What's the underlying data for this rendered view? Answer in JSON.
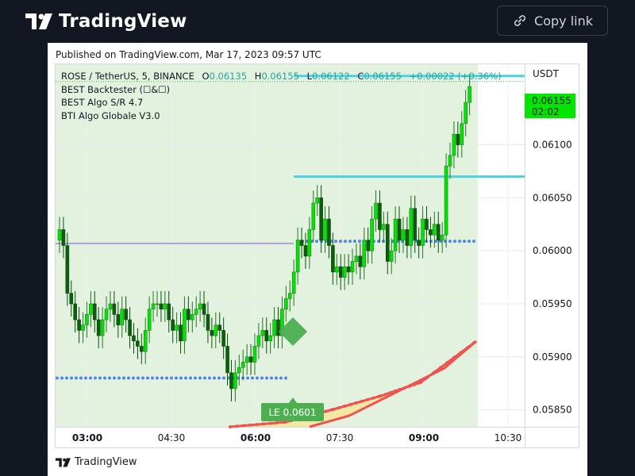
{
  "header": {
    "brand_name": "TradingView",
    "copy_link_label": "Copy link",
    "logo_icon": "tradingview-logo-icon",
    "link_icon": "link-icon"
  },
  "card": {
    "published": "Published on TradingView.com, Mar 17, 2023 09:57 UTC",
    "currency": "USDT",
    "footer_brand": "TradingView"
  },
  "legend": {
    "symbol": "ROSE / TetherUS, 5, BINANCE",
    "open_label": "O",
    "open": "0.06135",
    "high_label": "H",
    "high": "0.06155",
    "low_label": "L",
    "low": "0.06122",
    "close_label": "C",
    "close": "0.06155",
    "change": "+0.00022 (+0.36%)",
    "indicators": [
      "BEST Backtester (☐&☐)",
      "BEST Algo S/R 4.7",
      "BTI Algo Globale V3.0"
    ]
  },
  "colors": {
    "up": "#00e600",
    "down": "#0b5e0b",
    "bg_shade": "#e3f1df",
    "cyan": "#4dd0e1",
    "purple": "#b39ddb",
    "dots": "#4f86e8",
    "trend": "#ef5350",
    "trend_fill": "#f5e79e",
    "signal": "#4caf50"
  },
  "chart_data": {
    "type": "candlestick",
    "symbol": "ROSE / TetherUS",
    "interval": "5",
    "exchange": "BINANCE",
    "y_axis": {
      "ticks": [
        0.0585,
        0.059,
        0.0595,
        0.06,
        0.0605,
        0.061
      ],
      "tick_labels": [
        "0.05850",
        "0.05900",
        "0.05950",
        "0.06000",
        "0.06050",
        "0.06100"
      ],
      "range": [
        0.05834,
        0.06176
      ]
    },
    "x_axis": {
      "tick_labels": [
        "03:00",
        "04:30",
        "06:00",
        "07:30",
        "09:00",
        "10:30"
      ],
      "bold_ticks": [
        "03:00",
        "06:00",
        "09:00"
      ]
    },
    "last_price": "0.06155",
    "countdown": "02:02",
    "signal_label": "LE 0.0601",
    "close_series": [
      0.0602,
      0.06005,
      0.0596,
      0.0595,
      0.05935,
      0.05925,
      0.0593,
      0.0594,
      0.0595,
      0.05935,
      0.0592,
      0.05935,
      0.05945,
      0.0595,
      0.0594,
      0.0593,
      0.05945,
      0.05935,
      0.0592,
      0.05915,
      0.0591,
      0.05905,
      0.05925,
      0.05945,
      0.0595,
      0.0595,
      0.05945,
      0.0595,
      0.05935,
      0.05925,
      0.0593,
      0.05915,
      0.05945,
      0.05935,
      0.0594,
      0.05945,
      0.0595,
      0.0594,
      0.05925,
      0.0592,
      0.0593,
      0.05925,
      0.0591,
      0.05885,
      0.0587,
      0.05885,
      0.0589,
      0.05895,
      0.059,
      0.05895,
      0.0591,
      0.0592,
      0.05925,
      0.05915,
      0.0592,
      0.05935,
      0.0592,
      0.05945,
      0.05955,
      0.0596,
      0.0598,
      0.0601,
      0.06005,
      0.05995,
      0.0602,
      0.06045,
      0.0605,
      0.0601,
      0.0603,
      0.06005,
      0.0598,
      0.05985,
      0.05975,
      0.05985,
      0.0598,
      0.0599,
      0.05995,
      0.05985,
      0.0601,
      0.06,
      0.0603,
      0.06045,
      0.0602,
      0.06025,
      0.0599,
      0.06,
      0.0603,
      0.0601,
      0.0602,
      0.06005,
      0.0604,
      0.0601,
      0.06005,
      0.0603,
      0.0602,
      0.06015,
      0.06025,
      0.0601,
      0.06015,
      0.0608,
      0.0609,
      0.0611,
      0.061,
      0.0612,
      0.0614,
      0.06155
    ],
    "levels": {
      "cyan_upper": 0.06165,
      "cyan_lower": 0.0607,
      "purple": 0.06007,
      "dotted_right": 0.06009,
      "dotted_left": 0.0588
    },
    "ylabel": "USDT"
  }
}
